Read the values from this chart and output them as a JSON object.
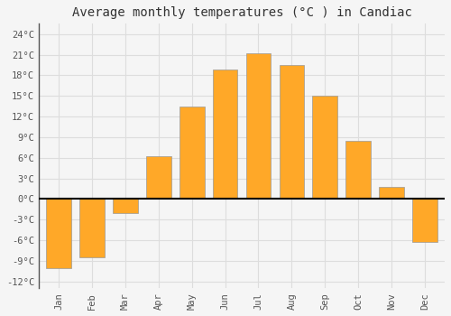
{
  "title": "Average monthly temperatures (°C ) in Candiac",
  "months": [
    "Jan",
    "Feb",
    "Mar",
    "Apr",
    "May",
    "Jun",
    "Jul",
    "Aug",
    "Sep",
    "Oct",
    "Nov",
    "Dec"
  ],
  "values": [
    -10,
    -8.5,
    -2,
    6.2,
    13.5,
    18.8,
    21.2,
    19.5,
    15.0,
    8.5,
    1.8,
    -6.2
  ],
  "bar_color": "#FFA828",
  "bar_edge_color": "#999999",
  "background_color": "#f5f5f5",
  "plot_bg_color": "#f5f5f5",
  "grid_color": "#dddddd",
  "yticks": [
    -12,
    -9,
    -6,
    -3,
    0,
    3,
    6,
    9,
    12,
    15,
    18,
    21,
    24
  ],
  "ylim": [
    -13,
    25.5
  ],
  "zero_line_color": "#000000",
  "title_fontsize": 10,
  "tick_fontsize": 7.5,
  "left_spine_color": "#555555"
}
